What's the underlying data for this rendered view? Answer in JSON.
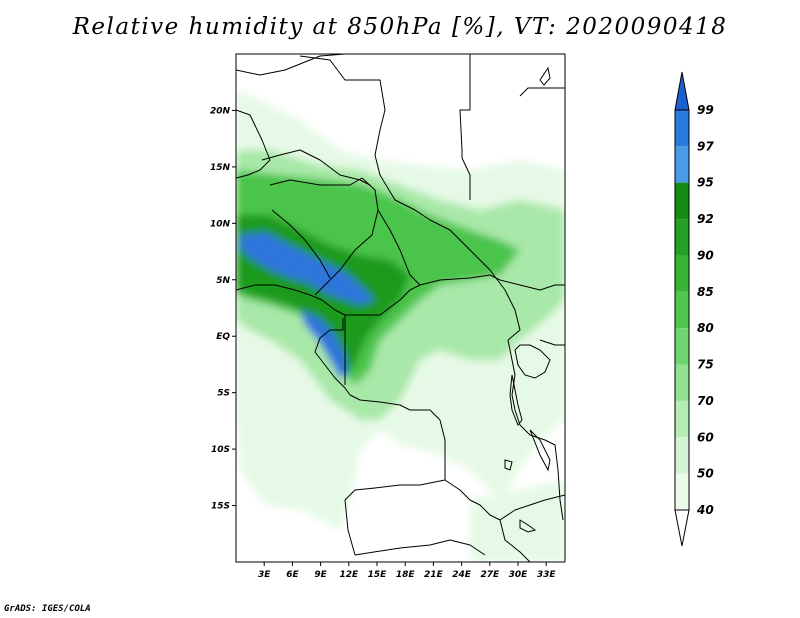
{
  "title": "Relative humidity at 850hPa [%], VT: 2020090418",
  "footer": "GrADS: IGES/COLA",
  "map": {
    "lat_range": [
      -20,
      25
    ],
    "lon_range": [
      0,
      35
    ],
    "lat_ticks": [
      "20N",
      "15N",
      "10N",
      "5N",
      "EQ",
      "5S",
      "10S",
      "15S"
    ],
    "lat_values": [
      20,
      15,
      10,
      5,
      0,
      -5,
      -10,
      -15
    ],
    "lon_ticks": [
      "3E",
      "6E",
      "9E",
      "12E",
      "15E",
      "18E",
      "21E",
      "24E",
      "27E",
      "30E",
      "33E"
    ],
    "lon_values": [
      3,
      6,
      9,
      12,
      15,
      18,
      21,
      24,
      27,
      30,
      33
    ]
  },
  "colorbar": {
    "labels": [
      "99",
      "97",
      "95",
      "92",
      "90",
      "85",
      "80",
      "75",
      "70",
      "60",
      "50",
      "40"
    ],
    "colors": [
      "#1e5fcf",
      "#2a7be0",
      "#4a9ae8",
      "#148c14",
      "#24a024",
      "#36b436",
      "#4ec84e",
      "#6ed66e",
      "#92e292",
      "#b4ecb4",
      "#d4f5d4",
      "#ebfbeb"
    ],
    "top_color": "#1e5fcf",
    "bottom_color": "#ffffff"
  }
}
